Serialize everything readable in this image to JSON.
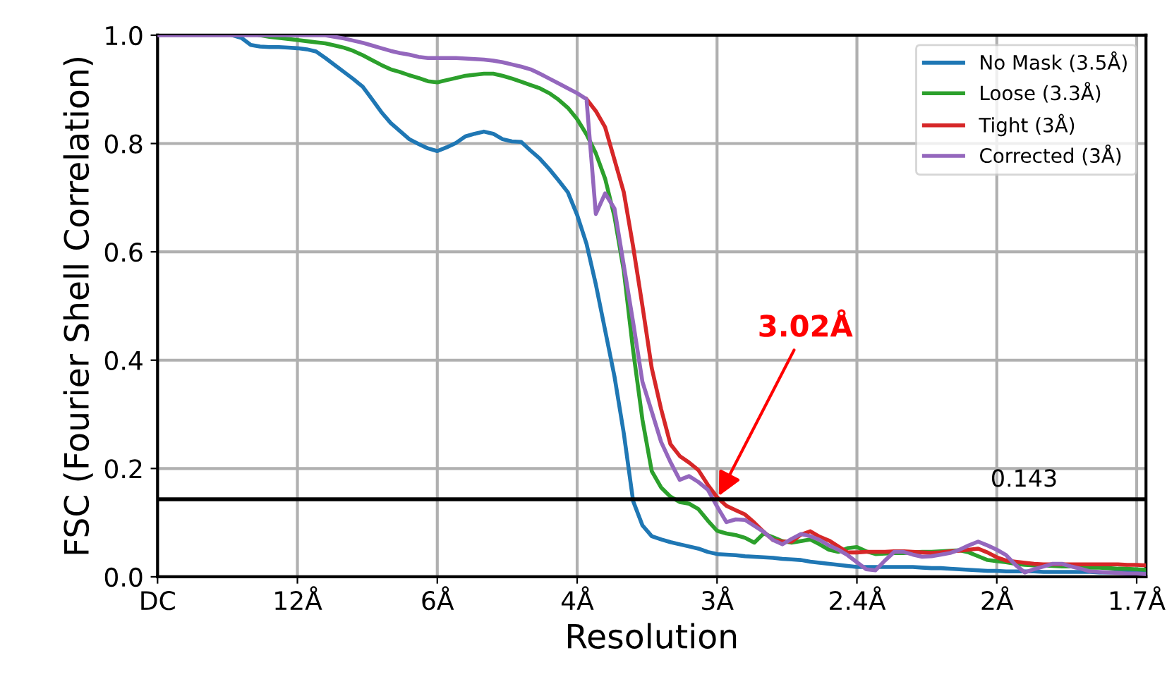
{
  "chart_data": {
    "type": "line",
    "xlabel": "Resolution",
    "ylabel": "FSC (Fourier Shell Correlation)",
    "categories": [
      "DC",
      null,
      null,
      null,
      null,
      null,
      null,
      null,
      null,
      null,
      null,
      null,
      null,
      null,
      null,
      "12Å",
      null,
      null,
      null,
      null,
      null,
      null,
      null,
      null,
      null,
      null,
      null,
      null,
      null,
      null,
      "6Å",
      null,
      null,
      null,
      null,
      null,
      null,
      null,
      null,
      null,
      null,
      null,
      null,
      null,
      null,
      "4Å",
      null,
      null,
      null,
      null,
      null,
      null,
      null,
      null,
      null,
      null,
      null,
      null,
      null,
      null,
      "3Å",
      null,
      null,
      null,
      null,
      null,
      null,
      null,
      null,
      null,
      null,
      null,
      null,
      null,
      null,
      "2.4Å",
      null,
      null,
      null,
      null,
      null,
      null,
      null,
      null,
      null,
      null,
      null,
      null,
      null,
      null,
      "2Å",
      null,
      null,
      null,
      null,
      null,
      null,
      null,
      null,
      null,
      null,
      null,
      null,
      null,
      null,
      "1.7Å",
      null
    ],
    "ylim": [
      0,
      1.0
    ],
    "yticks": [
      {
        "value": 0,
        "label": "0.0"
      },
      {
        "value": 0.2,
        "label": "0.2"
      },
      {
        "value": 0.4,
        "label": "0.4"
      },
      {
        "value": 0.6,
        "label": "0.6"
      },
      {
        "value": 0.8,
        "label": "0.8"
      },
      {
        "value": 1.0,
        "label": "1.0"
      }
    ],
    "grid": true,
    "legend": "top right",
    "line_style": "solid",
    "series": [
      {
        "name": "No Mask (3.5Å)",
        "color": "#1f77b4",
        "values": [
          null,
          null,
          null,
          null,
          null,
          null,
          null,
          null,
          1.0,
          0.995,
          0.982,
          0.979,
          0.978,
          0.978,
          0.977,
          0.976,
          0.974,
          0.97,
          0.958,
          0.945,
          0.932,
          0.919,
          0.905,
          0.882,
          0.858,
          0.838,
          0.823,
          0.808,
          0.799,
          0.791,
          0.786,
          0.793,
          0.801,
          0.813,
          0.818,
          0.822,
          0.818,
          0.808,
          0.804,
          0.803,
          0.787,
          0.772,
          0.753,
          0.732,
          0.71,
          0.668,
          0.615,
          0.54,
          0.455,
          0.37,
          0.265,
          0.14,
          0.095,
          0.075,
          0.069,
          0.064,
          0.06,
          0.056,
          0.052,
          0.046,
          0.042,
          0.041,
          0.04,
          0.038,
          0.037,
          0.036,
          0.035,
          0.033,
          0.032,
          0.031,
          0.028,
          0.026,
          0.024,
          0.022,
          0.02,
          0.018,
          0.018,
          0.018,
          0.018,
          0.018,
          0.018,
          0.018,
          0.017,
          0.016,
          0.016,
          0.015,
          0.014,
          0.013,
          0.012,
          0.011,
          0.011,
          0.01,
          0.01,
          0.01,
          0.01,
          0.009,
          0.009,
          0.009,
          0.009,
          0.009,
          0.009,
          0.008,
          0.008,
          0.008,
          0.008,
          0.008,
          0.008
        ]
      },
      {
        "name": "Loose (3.3Å)",
        "color": "#2ca02c",
        "values": [
          null,
          null,
          null,
          null,
          null,
          null,
          null,
          null,
          null,
          null,
          null,
          1.0,
          0.997,
          0.995,
          0.993,
          0.991,
          0.989,
          0.987,
          0.985,
          0.981,
          0.977,
          0.971,
          0.963,
          0.954,
          0.945,
          0.937,
          0.932,
          0.926,
          0.921,
          0.915,
          0.913,
          0.917,
          0.921,
          0.925,
          0.927,
          0.929,
          0.929,
          0.925,
          0.92,
          0.914,
          0.908,
          0.902,
          0.893,
          0.881,
          0.866,
          0.845,
          0.817,
          0.782,
          0.735,
          0.665,
          0.565,
          0.418,
          0.29,
          0.195,
          0.165,
          0.148,
          0.138,
          0.135,
          0.125,
          0.104,
          0.085,
          0.08,
          0.077,
          0.072,
          0.063,
          0.08,
          0.073,
          0.066,
          0.063,
          0.066,
          0.069,
          0.06,
          0.05,
          0.046,
          0.053,
          0.055,
          0.047,
          0.042,
          0.043,
          0.044,
          0.044,
          0.045,
          0.046,
          0.046,
          0.047,
          0.048,
          0.049,
          0.045,
          0.038,
          0.031,
          0.029,
          0.027,
          0.024,
          0.022,
          0.021,
          0.021,
          0.02,
          0.019,
          0.019,
          0.018,
          0.017,
          0.017,
          0.016,
          0.015,
          0.015,
          0.014,
          0.013
        ]
      },
      {
        "name": "Tight (3Å)",
        "color": "#d62728",
        "values": [
          null,
          null,
          null,
          null,
          null,
          null,
          null,
          null,
          null,
          null,
          null,
          null,
          null,
          null,
          null,
          null,
          null,
          null,
          null,
          null,
          null,
          null,
          null,
          null,
          null,
          null,
          null,
          null,
          null,
          null,
          null,
          null,
          null,
          null,
          null,
          null,
          null,
          null,
          null,
          null,
          null,
          null,
          null,
          null,
          null,
          null,
          0.882,
          0.86,
          0.83,
          0.77,
          0.71,
          0.61,
          0.5,
          0.385,
          0.31,
          0.245,
          0.223,
          0.211,
          0.197,
          0.17,
          0.147,
          0.131,
          0.123,
          0.115,
          0.1,
          0.083,
          0.068,
          0.065,
          0.065,
          0.078,
          0.084,
          0.074,
          0.067,
          0.056,
          0.045,
          0.045,
          0.046,
          0.046,
          0.046,
          0.047,
          0.047,
          0.046,
          0.045,
          0.044,
          0.045,
          0.047,
          0.048,
          0.05,
          0.052,
          0.045,
          0.036,
          0.03,
          0.028,
          0.026,
          0.024,
          0.023,
          0.023,
          0.023,
          0.023,
          0.023,
          0.023,
          0.023,
          0.023,
          0.023,
          0.022,
          0.022,
          0.021
        ]
      },
      {
        "name": "Corrected (3Å)",
        "color": "#9467bd",
        "values": [
          1.0,
          1.0,
          1.0,
          1.0,
          1.0,
          1.0,
          1.0,
          1.0,
          1.0,
          1.0,
          1.0,
          1.0,
          1.0,
          1.0,
          1.0,
          1.0,
          1.0,
          1.0,
          1.0,
          0.997,
          0.994,
          0.99,
          0.986,
          0.981,
          0.976,
          0.971,
          0.967,
          0.964,
          0.96,
          0.958,
          0.958,
          0.958,
          0.958,
          0.957,
          0.956,
          0.955,
          0.953,
          0.95,
          0.946,
          0.942,
          0.937,
          0.929,
          0.92,
          0.911,
          0.902,
          0.893,
          0.882,
          0.67,
          0.708,
          0.68,
          0.575,
          0.47,
          0.36,
          0.305,
          0.249,
          0.212,
          0.179,
          0.186,
          0.175,
          0.161,
          0.13,
          0.101,
          0.106,
          0.105,
          0.094,
          0.083,
          0.068,
          0.06,
          0.07,
          0.079,
          0.075,
          0.068,
          0.058,
          0.05,
          0.04,
          0.027,
          0.014,
          0.012,
          0.03,
          0.046,
          0.046,
          0.041,
          0.037,
          0.038,
          0.041,
          0.044,
          0.05,
          0.058,
          0.065,
          0.058,
          0.05,
          0.04,
          0.022,
          0.008,
          0.014,
          0.019,
          0.024,
          0.024,
          0.019,
          0.015,
          0.01,
          0.009,
          0.008,
          0.007,
          0.006,
          0.006,
          0.005
        ]
      }
    ],
    "ref_lines": [
      {
        "axis": "y",
        "value": 0.143,
        "label": "0.143",
        "color": "#000000",
        "line_style": "solid"
      }
    ],
    "annotations": [
      {
        "text": "3.02Å",
        "x": "3Å",
        "y": 0.143
      }
    ]
  }
}
